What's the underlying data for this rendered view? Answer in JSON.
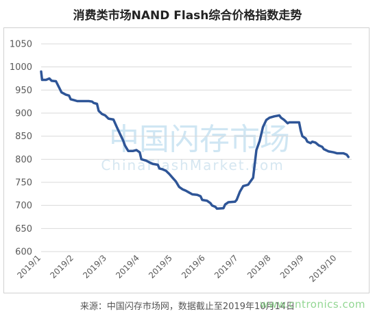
{
  "title": "消费类市场NAND Flash综合价格指数走势",
  "source_note": "来源：中国闪存市场网，数据截止至2019年10月14日",
  "watermark": {
    "main": "中国闪存市场",
    "sub": "ChinaFlashMarket.com",
    "corner": "www.cntronics.com"
  },
  "colors": {
    "line": "#2e5597",
    "grid": "#d9d9d9",
    "axis_text": "#595959"
  },
  "chart_data": {
    "type": "line",
    "title": "消费类市场NAND Flash综合价格指数走势",
    "xlabel": "",
    "ylabel": "",
    "ylim": [
      600,
      1050
    ],
    "yticks": [
      600,
      650,
      700,
      750,
      800,
      850,
      900,
      950,
      1000,
      1050
    ],
    "xlim": [
      0,
      9.45
    ],
    "x_tick_labels": [
      "2019/1",
      "2019/2",
      "2019/3",
      "2019/4",
      "2019/5",
      "2019/6",
      "2019/7",
      "2019/8",
      "2019/9",
      "2019/10"
    ],
    "grid": true,
    "legend": "none",
    "series": [
      {
        "points": [
          [
            0.0,
            990
          ],
          [
            0.03,
            972
          ],
          [
            0.15,
            972
          ],
          [
            0.25,
            975
          ],
          [
            0.32,
            970
          ],
          [
            0.45,
            969
          ],
          [
            0.55,
            955
          ],
          [
            0.62,
            945
          ],
          [
            0.75,
            940
          ],
          [
            0.85,
            938
          ],
          [
            0.9,
            930
          ],
          [
            1.0,
            928
          ],
          [
            1.1,
            926
          ],
          [
            1.2,
            926
          ],
          [
            1.3,
            926
          ],
          [
            1.45,
            926
          ],
          [
            1.55,
            925
          ],
          [
            1.6,
            922
          ],
          [
            1.7,
            920
          ],
          [
            1.75,
            905
          ],
          [
            1.85,
            898
          ],
          [
            1.95,
            895
          ],
          [
            2.05,
            888
          ],
          [
            2.2,
            886
          ],
          [
            2.3,
            870
          ],
          [
            2.4,
            855
          ],
          [
            2.5,
            840
          ],
          [
            2.55,
            830
          ],
          [
            2.65,
            818
          ],
          [
            2.8,
            818
          ],
          [
            2.9,
            820
          ],
          [
            3.0,
            815
          ],
          [
            3.05,
            800
          ],
          [
            3.2,
            797
          ],
          [
            3.3,
            793
          ],
          [
            3.4,
            790
          ],
          [
            3.55,
            788
          ],
          [
            3.6,
            780
          ],
          [
            3.7,
            778
          ],
          [
            3.8,
            775
          ],
          [
            3.9,
            768
          ],
          [
            4.0,
            760
          ],
          [
            4.1,
            752
          ],
          [
            4.2,
            740
          ],
          [
            4.3,
            735
          ],
          [
            4.4,
            732
          ],
          [
            4.5,
            728
          ],
          [
            4.6,
            724
          ],
          [
            4.75,
            723
          ],
          [
            4.85,
            720
          ],
          [
            4.9,
            712
          ],
          [
            5.05,
            710
          ],
          [
            5.15,
            705
          ],
          [
            5.2,
            700
          ],
          [
            5.3,
            697
          ],
          [
            5.35,
            693
          ],
          [
            5.55,
            694
          ],
          [
            5.6,
            702
          ],
          [
            5.7,
            707
          ],
          [
            5.9,
            708
          ],
          [
            5.95,
            712
          ],
          [
            6.05,
            730
          ],
          [
            6.15,
            742
          ],
          [
            6.3,
            745
          ],
          [
            6.35,
            750
          ],
          [
            6.45,
            760
          ],
          [
            6.55,
            820
          ],
          [
            6.65,
            840
          ],
          [
            6.75,
            870
          ],
          [
            6.85,
            885
          ],
          [
            6.95,
            890
          ],
          [
            7.1,
            893
          ],
          [
            7.25,
            895
          ],
          [
            7.3,
            890
          ],
          [
            7.4,
            885
          ],
          [
            7.5,
            878
          ],
          [
            7.55,
            880
          ],
          [
            7.85,
            880
          ],
          [
            7.9,
            862
          ],
          [
            7.95,
            850
          ],
          [
            8.05,
            845
          ],
          [
            8.1,
            838
          ],
          [
            8.2,
            835
          ],
          [
            8.25,
            838
          ],
          [
            8.35,
            836
          ],
          [
            8.45,
            830
          ],
          [
            8.55,
            827
          ],
          [
            8.6,
            822
          ],
          [
            8.75,
            817
          ],
          [
            8.9,
            815
          ],
          [
            9.0,
            813
          ],
          [
            9.2,
            813
          ],
          [
            9.3,
            810
          ],
          [
            9.35,
            805
          ]
        ]
      }
    ]
  }
}
